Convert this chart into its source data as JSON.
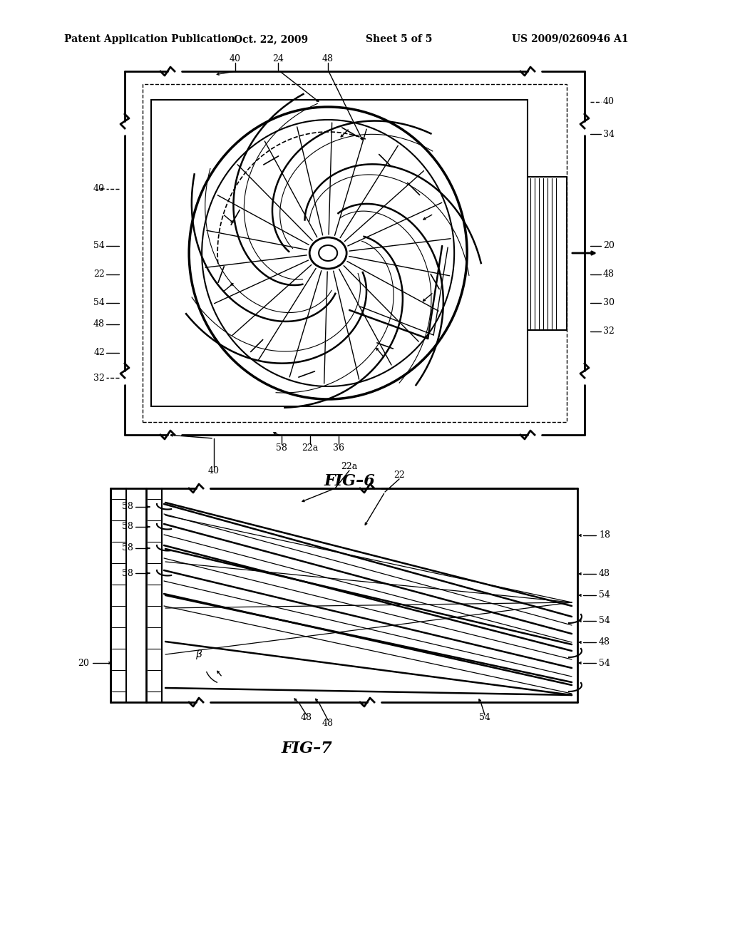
{
  "bg_color": "#ffffff",
  "line_color": "#000000",
  "header_text": "Patent Application Publication",
  "header_date": "Oct. 22, 2009",
  "header_sheet": "Sheet 5 of 5",
  "header_patent": "US 2009/0260946 A1"
}
